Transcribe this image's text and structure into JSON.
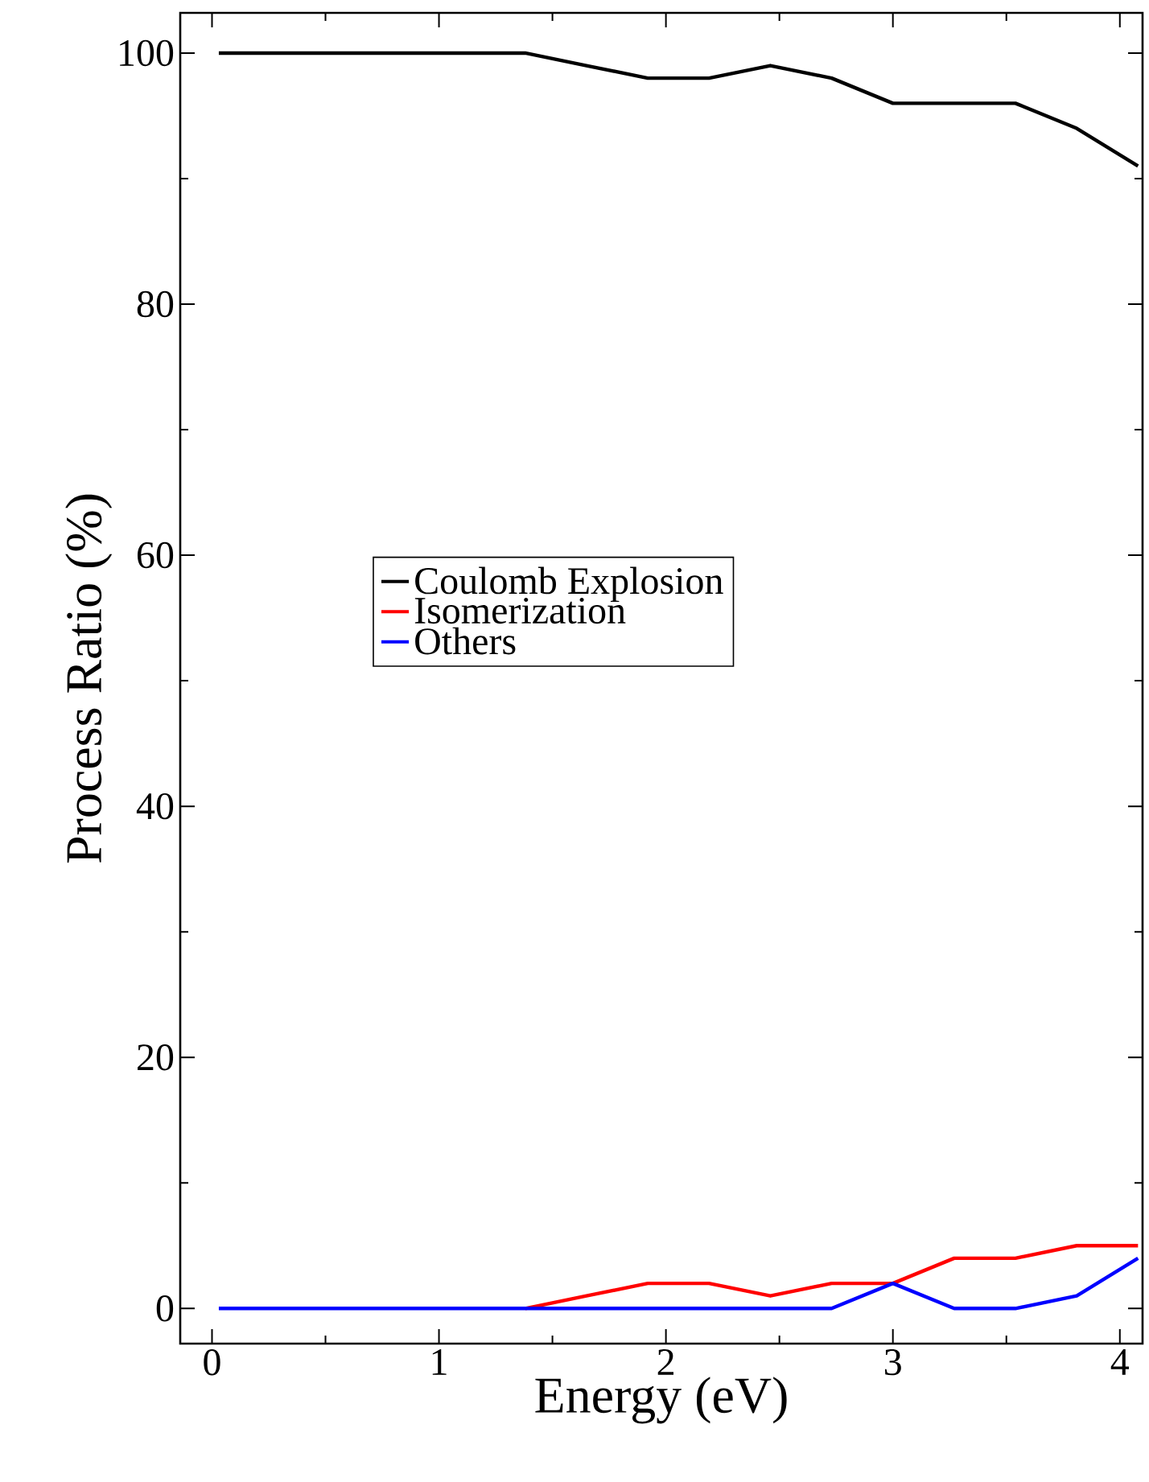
{
  "chart_data": {
    "type": "line",
    "xlabel": "Energy (eV)",
    "ylabel": "Process Ratio (%)",
    "x": [
      0.03,
      0.3,
      0.57,
      0.84,
      1.11,
      1.38,
      1.65,
      1.92,
      2.19,
      2.46,
      2.73,
      3.0,
      3.27,
      3.54,
      3.81,
      4.08
    ],
    "series": [
      {
        "name": "Coulomb Explosion",
        "color": "#000000",
        "values": [
          100,
          100,
          100,
          100,
          100,
          100,
          99,
          98,
          98,
          99,
          98,
          96,
          96,
          96,
          94,
          91
        ]
      },
      {
        "name": "Isomerization",
        "color": "#ff0000",
        "values": [
          null,
          null,
          null,
          null,
          null,
          0,
          1,
          2,
          2,
          1,
          2,
          2,
          4,
          4,
          5,
          5
        ]
      },
      {
        "name": "Others",
        "color": "#0000ff",
        "values": [
          0,
          0,
          0,
          0,
          0,
          0,
          0,
          0,
          0,
          0,
          0,
          2,
          0,
          0,
          1,
          4
        ]
      }
    ],
    "xlim": [
      -0.14,
      4.1
    ],
    "ylim": [
      -2.8,
      103.2
    ],
    "xticks": [
      0,
      1,
      2,
      3,
      4
    ],
    "yticks": [
      0,
      20,
      40,
      60,
      80,
      100
    ],
    "grid": false,
    "legend": "center",
    "marker": "none",
    "line_style": "solid"
  }
}
